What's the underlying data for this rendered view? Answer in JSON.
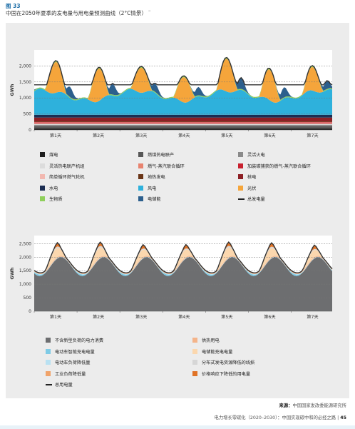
{
  "header": {
    "figure_label": "图 33",
    "title": "中国在2050年夏季的发电量与用电量预测曲线（2°C情景）",
    "title_note": "⁸¹"
  },
  "chart_data": [
    {
      "type": "area",
      "ylabel": "GWh",
      "ylim": [
        0,
        2500
      ],
      "yticks": [
        "0",
        "500",
        "1,000",
        "1,500",
        "2,000"
      ],
      "yticks_values": [
        0,
        500,
        1000,
        1500,
        2000
      ],
      "categories": [
        "第1天",
        "第2天",
        "第3天",
        "第4天",
        "第5天",
        "第6天",
        "第7天"
      ],
      "grid": true,
      "legend_placement": "bottom",
      "stacked": true,
      "series": [
        {
          "name": "煤电",
          "color": "#1e1e1e",
          "day_profile": "flat",
          "base": 50
        },
        {
          "name": "燃煤热电联产",
          "color": "#575757",
          "day_profile": "flat",
          "base": 70
        },
        {
          "name": "灵活火电",
          "color": "#8a8a8a",
          "day_profile": "flat",
          "base": 40
        },
        {
          "name": "灵活热电联产机组",
          "color": "#dcdcdc",
          "day_profile": "flat",
          "base": 30
        },
        {
          "name": "燃气-蒸汽联合循环",
          "color": "#e8836f",
          "day_profile": "flat",
          "base": 15
        },
        {
          "name": "加装碳捕获的燃气-蒸汽联合循环",
          "color": "#c8202e",
          "day_profile": "flat",
          "base": 30
        },
        {
          "name": "简单循环燃气轮机",
          "color": "#f2b8b0",
          "day_profile": "flat",
          "base": 10
        },
        {
          "name": "地热发电",
          "color": "#6a3517",
          "day_profile": "flat",
          "base": 20
        },
        {
          "name": "核电",
          "color": "#8c1f24",
          "day_profile": "flat",
          "base": 120
        },
        {
          "name": "水电",
          "color": "#1b2d52",
          "day_profile": "flat",
          "base": 90
        },
        {
          "name": "风电",
          "color": "#2eb1dc",
          "day_profile": "wind",
          "base": 800
        },
        {
          "name": "光伏",
          "color": "#f5a53b",
          "day_profile": "solar",
          "base": 1050
        },
        {
          "name": "生物质",
          "color": "#8fcf5b",
          "day_profile": "flat",
          "base": 30
        },
        {
          "name": "电储能",
          "color": "#2c5f8d",
          "day_profile": "evening",
          "base": 350
        }
      ],
      "line": {
        "name": "总发电量",
        "color": "#333333",
        "low": 1400,
        "high": 2150
      }
    },
    {
      "type": "area",
      "ylabel": "GWh",
      "ylim": [
        0,
        2800
      ],
      "yticks": [
        "0",
        "500",
        "1,000",
        "1,500",
        "2,000",
        "2,500"
      ],
      "yticks_values": [
        0,
        500,
        1000,
        1500,
        2000,
        2500
      ],
      "categories": [
        "第1天",
        "第2天",
        "第3天",
        "第4天",
        "第5天",
        "第6天",
        "第7天"
      ],
      "grid": true,
      "legend_placement": "bottom",
      "stacked": true,
      "series": [
        {
          "name": "不含新型负荷的电力消费",
          "color": "#6d6e70",
          "day_profile": "base",
          "low": 1300,
          "high": 2000
        },
        {
          "name": "电动车智能充电电量",
          "color": "#7fcbe6",
          "day_profile": "night",
          "base": 60
        },
        {
          "name": "电动车负荷降低量",
          "color": "#b9e1f2",
          "day_profile": "flat",
          "base": 20
        },
        {
          "name": "工业负荷降低量",
          "color": "#f0a36a",
          "day_profile": "flat",
          "base": 15
        },
        {
          "name": "供热用电",
          "color": "#f4b48a",
          "day_profile": "flat",
          "base": 20
        },
        {
          "name": "电储能充电电量",
          "color": "#fbd7ae",
          "day_profile": "solar",
          "base": 380
        },
        {
          "name": "分布式发电资源降低的线损",
          "color": "#d6d6d6",
          "day_profile": "solar",
          "base": 60
        },
        {
          "name": "价格响应下降低的用电量",
          "color": "#e07326",
          "day_profile": "peak",
          "base": 130
        }
      ],
      "line": {
        "name": "总用电量",
        "color": "#333333",
        "low": 1400,
        "high": 2400
      }
    }
  ],
  "legend1": [
    {
      "label": "煤电",
      "color": "#1e1e1e"
    },
    {
      "label": "燃煤热电联产",
      "color": "#575757"
    },
    {
      "label": "灵活火电",
      "color": "#8a8a8a"
    },
    {
      "label": "灵活热电联产机组",
      "color": "#dcdcdc"
    },
    {
      "label": "燃气-蒸汽联合循环",
      "color": "#e8836f"
    },
    {
      "label": "加装碳捕获的燃气-蒸汽联合循环",
      "color": "#c8202e"
    },
    {
      "label": "简单循环燃气轮机",
      "color": "#f2b8b0"
    },
    {
      "label": "地热发电",
      "color": "#6a3517"
    },
    {
      "label": "核电",
      "color": "#8c1f24"
    },
    {
      "label": "水电",
      "color": "#1b2d52"
    },
    {
      "label": "风电",
      "color": "#2eb1dc"
    },
    {
      "label": "光伏",
      "color": "#f5a53b"
    },
    {
      "label": "生物质",
      "color": "#8fcf5b"
    },
    {
      "label": "电储能",
      "color": "#2c5f8d"
    },
    {
      "label": "总发电量",
      "color": "#333333",
      "line": true
    }
  ],
  "legend2": [
    {
      "label": "不含新型负荷的电力消费",
      "color": "#6d6e70"
    },
    {
      "label": "供热用电",
      "color": "#f4b48a"
    },
    {
      "label": "电动车智能充电电量",
      "color": "#7fcbe6"
    },
    {
      "label": "电储能充电电量",
      "color": "#fbd7ae"
    },
    {
      "label": "电动车负荷降低量",
      "color": "#b9e1f2"
    },
    {
      "label": "分布式发电资源降低的线损",
      "color": "#d6d6d6"
    },
    {
      "label": "工业负荷降低量",
      "color": "#f0a36a"
    },
    {
      "label": "价格响应下降低的用电量",
      "color": "#e07326"
    },
    {
      "label": "总用电量",
      "color": "#333333",
      "line": true
    }
  ],
  "source": {
    "label": "来源：",
    "text": "中国国家发改委能源研究所"
  },
  "footer": {
    "text": "电力增长零碳化（2020–2030）：中国实现碳中和的必经之路",
    "separator": " | ",
    "page": "45"
  }
}
